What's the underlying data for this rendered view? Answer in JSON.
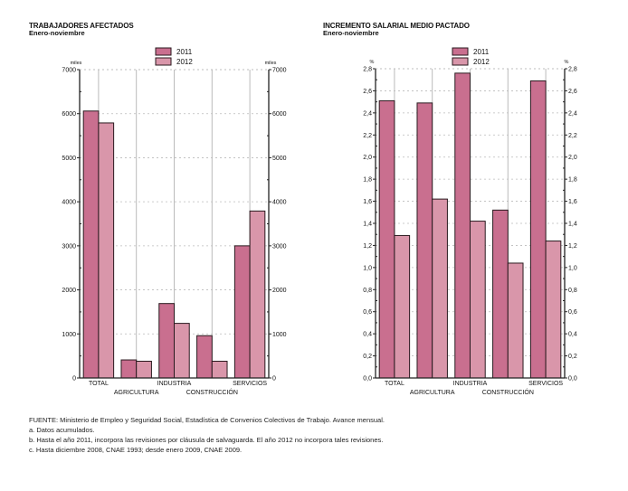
{
  "colors": {
    "s2011": "#c96f8f",
    "s2012": "#d996aa",
    "grid": "#bbbbbb",
    "axis": "#222222",
    "border": "#2a1a1f"
  },
  "chart_data": [
    {
      "type": "bar",
      "title": "TRABAJADORES AFECTADOS",
      "subtitle": "Enero-noviembre",
      "unit_left": "miles",
      "unit_right": "miles",
      "categories": [
        "TOTAL",
        "AGRICULTURA",
        "INDUSTRIA",
        "CONSTRUCCIÓN",
        "SERVICIOS"
      ],
      "series": [
        {
          "name": "2011",
          "values": [
            6060,
            410,
            1690,
            960,
            3000
          ]
        },
        {
          "name": "2012",
          "values": [
            5790,
            380,
            1240,
            380,
            3790
          ]
        }
      ],
      "ylim": [
        0,
        7000
      ],
      "yticks": [
        0,
        1000,
        2000,
        3000,
        4000,
        5000,
        6000,
        7000
      ],
      "ytick_labels": [
        "0",
        "1000",
        "2000",
        "3000",
        "4000",
        "5000",
        "6000",
        "7000"
      ],
      "grid": true,
      "legend": "top-center"
    },
    {
      "type": "bar",
      "title": "INCREMENTO SALARIAL MEDIO PACTADO",
      "subtitle": "Enero-noviembre",
      "unit_left": "%",
      "unit_right": "%",
      "categories": [
        "TOTAL",
        "AGRICULTURA",
        "INDUSTRIA",
        "CONSTRUCCIÓN",
        "SERVICIOS"
      ],
      "series": [
        {
          "name": "2011",
          "values": [
            2.51,
            2.49,
            2.76,
            1.52,
            2.69
          ]
        },
        {
          "name": "2012",
          "values": [
            1.29,
            1.62,
            1.42,
            1.04,
            1.24
          ]
        }
      ],
      "ylim": [
        0,
        2.8
      ],
      "yticks": [
        0,
        0.2,
        0.4,
        0.6,
        0.8,
        1.0,
        1.2,
        1.4,
        1.6,
        1.8,
        2.0,
        2.2,
        2.4,
        2.6,
        2.8
      ],
      "ytick_labels": [
        "0,0",
        "0,2",
        "0,4",
        "0,6",
        "0,8",
        "1,0",
        "1,2",
        "1,4",
        "1,6",
        "1,8",
        "2,0",
        "2,2",
        "2,4",
        "2,6",
        "2,8"
      ],
      "grid": true,
      "legend": "top-center"
    }
  ],
  "footnotes": [
    "FUENTE: Ministerio de Empleo y Seguridad Social, Estadística de Convenios Colectivos de Trabajo. Avance mensual.",
    "a. Datos acumulados.",
    "b. Hasta el año 2011, incorpora las revisiones por cláusula de salvaguarda. El año 2012 no incorpora tales revisiones.",
    "c. Hasta diciembre 2008, CNAE 1993; desde enero 2009, CNAE 2009."
  ]
}
